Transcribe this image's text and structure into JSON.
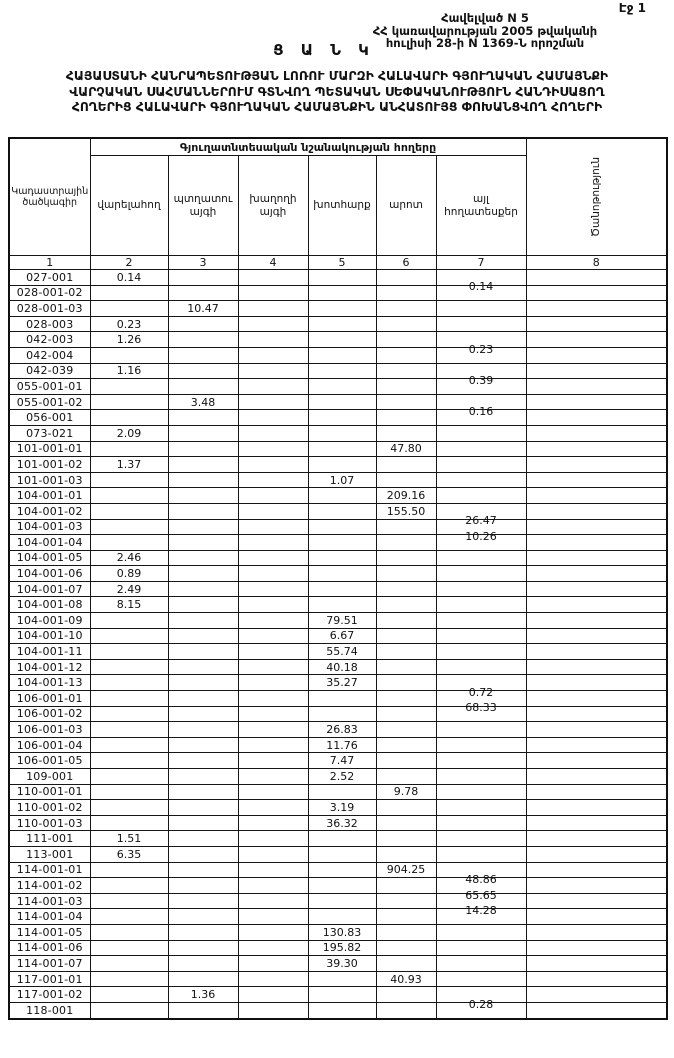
{
  "page": {
    "page_label": "Էջ 1",
    "appendix_lines": [
      "Հավելված N 5",
      "ՀՀ կառավարության 2005 թվականի",
      "հուլիսի 28-ի N 1369-Ն որոշման"
    ],
    "title": "Ց Ա Ն Կ",
    "subtitle_lines": [
      "ՀԱՅԱՍՏԱՆԻ ՀԱՆՐԱՊԵՏՈՒԹՅԱՆ ԼՈՌՈՒ ՄԱՐԶԻ ՀԱԼԱՎԱՐԻ ԳՅՈՒՂԱԿԱՆ ՀԱՄԱՅՆՔԻ",
      "ՎԱՐՉԱԿԱՆ ՍԱՀՄԱՆՆԵՐՈՒՄ ԳՏՆՎՈՂ ՊԵՏԱԿԱՆ ՍԵՓԱԿԱՆՈՒԹՅՈՒՆ ՀԱՆԴԻՍԱՑՈՂ",
      "ՀՈՂԵՐԻՑ ՀԱԼԱՎԱՐԻ ԳՅՈՒՂԱԿԱՆ ՀԱՄԱՅՆՔԻՆ ԱՆՀԱՏՈՒՅՑ ՓՈԽԱՆՑՎՈՂ ՀՈՂԵՐԻ"
    ]
  },
  "table": {
    "corner_header": "Կադաստրային ծածկագիր",
    "group_header": "Գյուղատնտեսական նշանակության հողերը",
    "note_header": "Ծանոթություն",
    "col_headers": [
      "վարելահող",
      "պտղատու այգի",
      "խաղողի այգի",
      "խոտհարք",
      "արոտ",
      "այլ հողատեսքեր"
    ],
    "col_numbers": [
      "1",
      "2",
      "3",
      "4",
      "5",
      "6",
      "7",
      "8"
    ],
    "rows": [
      [
        "027-001",
        "0.14",
        "",
        "",
        "",
        "",
        "",
        ""
      ],
      [
        "028-001-02",
        "",
        "",
        "",
        "",
        "",
        "0.14",
        ""
      ],
      [
        "028-001-03",
        "",
        "10.47",
        "",
        "",
        "",
        "",
        ""
      ],
      [
        "028-003",
        "0.23",
        "",
        "",
        "",
        "",
        "",
        ""
      ],
      [
        "042-003",
        "1.26",
        "",
        "",
        "",
        "",
        "",
        ""
      ],
      [
        "042-004",
        "",
        "",
        "",
        "",
        "",
        "0.23",
        ""
      ],
      [
        "042-039",
        "1.16",
        "",
        "",
        "",
        "",
        "",
        ""
      ],
      [
        "055-001-01",
        "",
        "",
        "",
        "",
        "",
        "0.39",
        ""
      ],
      [
        "055-001-02",
        "",
        "3.48",
        "",
        "",
        "",
        "",
        ""
      ],
      [
        "056-001",
        "",
        "",
        "",
        "",
        "",
        "0.16",
        ""
      ],
      [
        "073-021",
        "2.09",
        "",
        "",
        "",
        "",
        "",
        ""
      ],
      [
        "101-001-01",
        "",
        "",
        "",
        "",
        "47.80",
        "",
        ""
      ],
      [
        "101-001-02",
        "1.37",
        "",
        "",
        "",
        "",
        "",
        ""
      ],
      [
        "101-001-03",
        "",
        "",
        "",
        "1.07",
        "",
        "",
        ""
      ],
      [
        "104-001-01",
        "",
        "",
        "",
        "",
        "209.16",
        "",
        ""
      ],
      [
        "104-001-02",
        "",
        "",
        "",
        "",
        "155.50",
        "",
        ""
      ],
      [
        "104-001-03",
        "",
        "",
        "",
        "",
        "",
        "26.47",
        ""
      ],
      [
        "104-001-04",
        "",
        "",
        "",
        "",
        "",
        "10.26",
        ""
      ],
      [
        "104-001-05",
        "2.46",
        "",
        "",
        "",
        "",
        "",
        ""
      ],
      [
        "104-001-06",
        "0.89",
        "",
        "",
        "",
        "",
        "",
        ""
      ],
      [
        "104-001-07",
        "2.49",
        "",
        "",
        "",
        "",
        "",
        ""
      ],
      [
        "104-001-08",
        "8.15",
        "",
        "",
        "",
        "",
        "",
        ""
      ],
      [
        "104-001-09",
        "",
        "",
        "",
        "79.51",
        "",
        "",
        ""
      ],
      [
        "104-001-10",
        "",
        "",
        "",
        "6.67",
        "",
        "",
        ""
      ],
      [
        "104-001-11",
        "",
        "",
        "",
        "55.74",
        "",
        "",
        ""
      ],
      [
        "104-001-12",
        "",
        "",
        "",
        "40.18",
        "",
        "",
        ""
      ],
      [
        "104-001-13",
        "",
        "",
        "",
        "35.27",
        "",
        "",
        ""
      ],
      [
        "106-001-01",
        "",
        "",
        "",
        "",
        "",
        "0.72",
        ""
      ],
      [
        "106-001-02",
        "",
        "",
        "",
        "",
        "",
        "68.33",
        ""
      ],
      [
        "106-001-03",
        "",
        "",
        "",
        "26.83",
        "",
        "",
        ""
      ],
      [
        "106-001-04",
        "",
        "",
        "",
        "11.76",
        "",
        "",
        ""
      ],
      [
        "106-001-05",
        "",
        "",
        "",
        "7.47",
        "",
        "",
        ""
      ],
      [
        "109-001",
        "",
        "",
        "",
        "2.52",
        "",
        "",
        ""
      ],
      [
        "110-001-01",
        "",
        "",
        "",
        "",
        "9.78",
        "",
        ""
      ],
      [
        "110-001-02",
        "",
        "",
        "",
        "3.19",
        "",
        "",
        ""
      ],
      [
        "110-001-03",
        "",
        "",
        "",
        "36.32",
        "",
        "",
        ""
      ],
      [
        "111-001",
        "1.51",
        "",
        "",
        "",
        "",
        "",
        ""
      ],
      [
        "113-001",
        "6.35",
        "",
        "",
        "",
        "",
        "",
        ""
      ],
      [
        "114-001-01",
        "",
        "",
        "",
        "",
        "904.25",
        "",
        ""
      ],
      [
        "114-001-02",
        "",
        "",
        "",
        "",
        "",
        "48.86",
        ""
      ],
      [
        "114-001-03",
        "",
        "",
        "",
        "",
        "",
        "65.65",
        ""
      ],
      [
        "114-001-04",
        "",
        "",
        "",
        "",
        "",
        "14.28",
        ""
      ],
      [
        "114-001-05",
        "",
        "",
        "",
        "130.83",
        "",
        "",
        ""
      ],
      [
        "114-001-06",
        "",
        "",
        "",
        "195.82",
        "",
        "",
        ""
      ],
      [
        "114-001-07",
        "",
        "",
        "",
        "39.30",
        "",
        "",
        ""
      ],
      [
        "117-001-01",
        "",
        "",
        "",
        "",
        "40.93",
        "",
        ""
      ],
      [
        "117-001-02",
        "",
        "1.36",
        "",
        "",
        "",
        "",
        ""
      ],
      [
        "118-001",
        "",
        "",
        "",
        "",
        "",
        "0.28",
        ""
      ]
    ]
  }
}
